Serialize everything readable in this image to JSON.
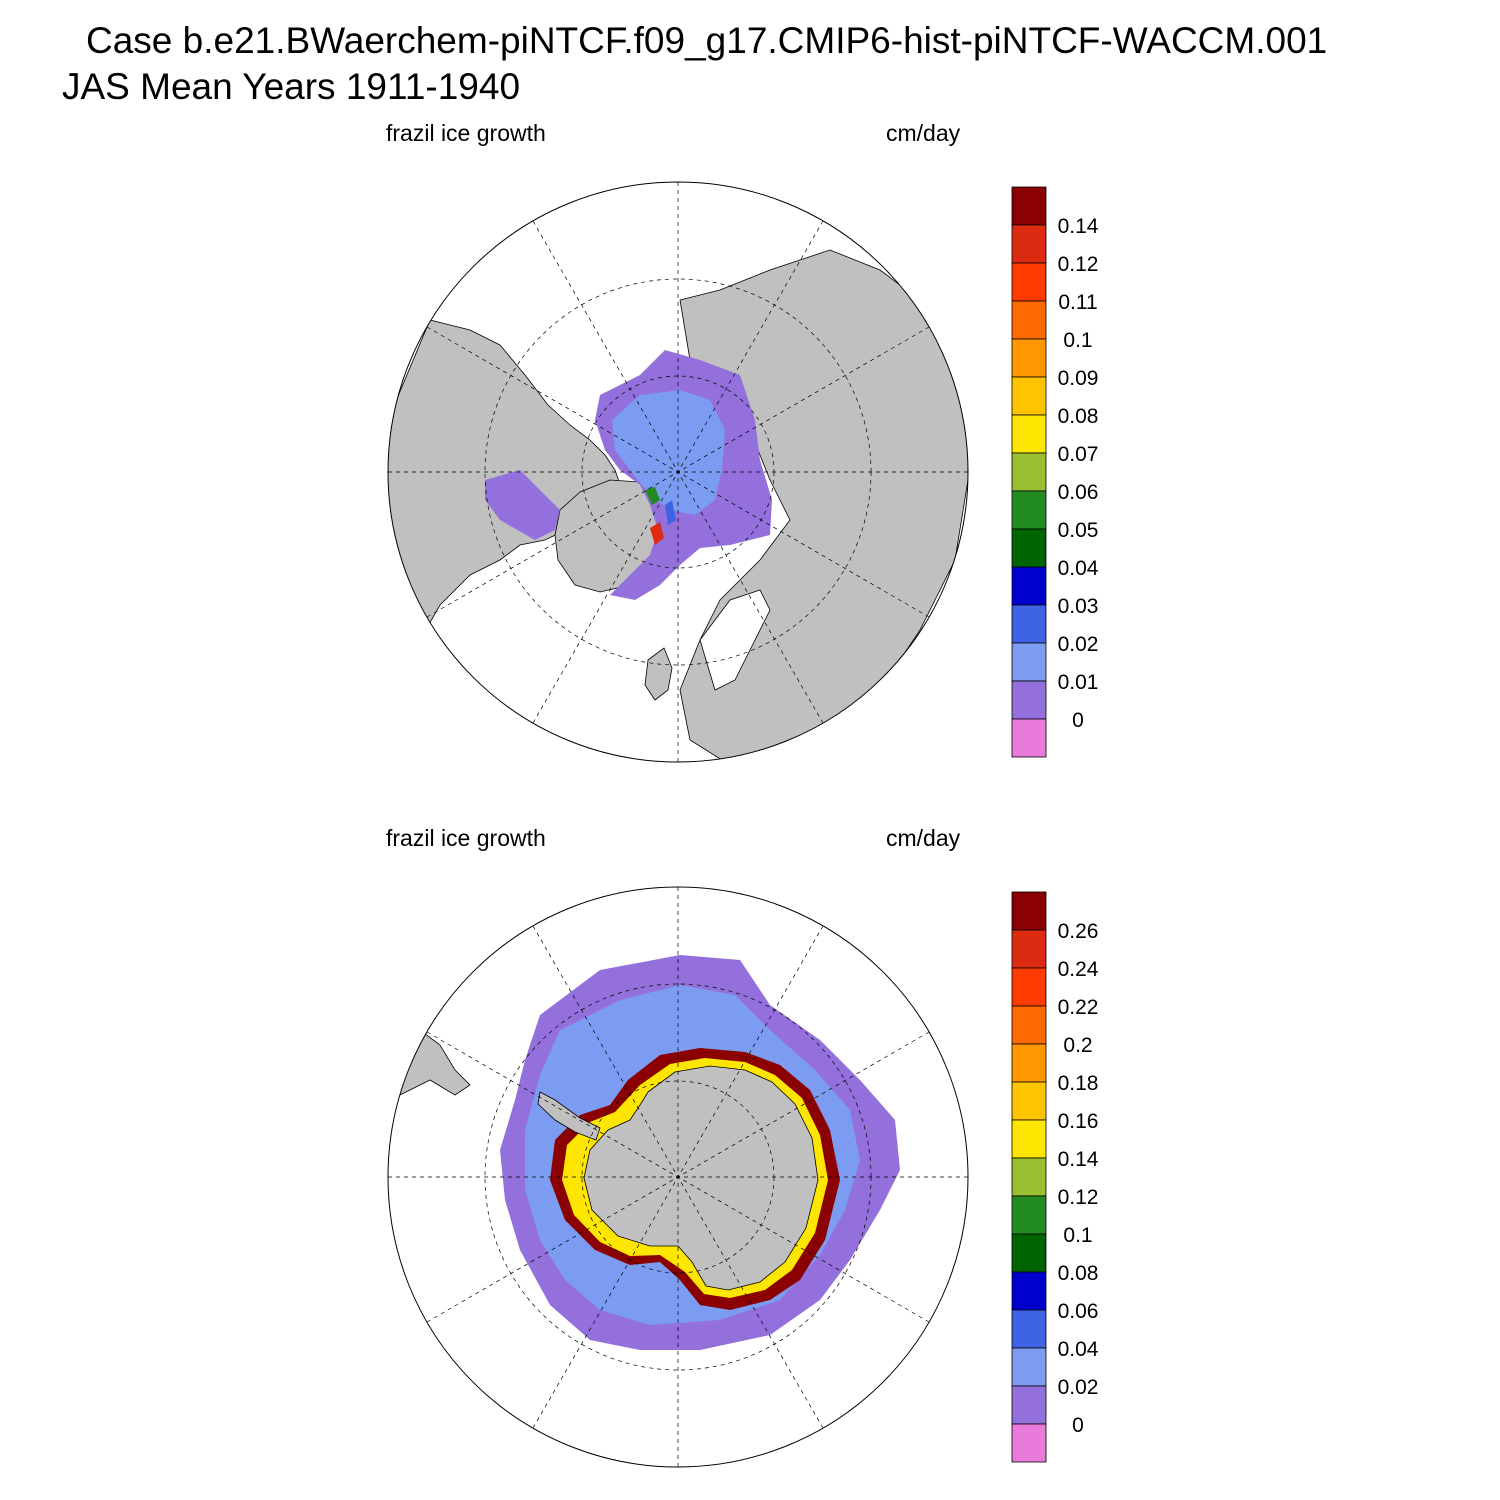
{
  "header": {
    "title_line1": "Case b.e21.BWaerchem-piNTCF.f09_g17.CMIP6-hist-piNTCF-WACCM.001",
    "title_line2": "JAS Mean   Years 1911-1940"
  },
  "panels": [
    {
      "id": "north",
      "left_label": "frazil ice growth",
      "right_label": "cm/day",
      "hemisphere": "north-polar-stereographic",
      "colorbar": {
        "levels": [
          "0.14",
          "0.12",
          "0.11",
          "0.1",
          "0.09",
          "0.08",
          "0.07",
          "0.06",
          "0.05",
          "0.04",
          "0.03",
          "0.02",
          "0.01",
          "0"
        ]
      }
    },
    {
      "id": "south",
      "left_label": "frazil ice growth",
      "right_label": "cm/day",
      "hemisphere": "south-polar-stereographic",
      "colorbar": {
        "levels": [
          "0.26",
          "0.24",
          "0.22",
          "0.2",
          "0.18",
          "0.16",
          "0.14",
          "0.12",
          "0.1",
          "0.08",
          "0.06",
          "0.04",
          "0.02",
          "0"
        ]
      }
    }
  ],
  "colors": {
    "palette_top_to_bottom": [
      "#8b0000",
      "#dc2b10",
      "#ff3b00",
      "#ff6a00",
      "#ff9800",
      "#ffc400",
      "#ffe600",
      "#9bbf32",
      "#228b22",
      "#006400",
      "#0000cd",
      "#3e64e5",
      "#7b9cf0",
      "#9370db",
      "#e87ad9"
    ],
    "land": "#c0c0c0",
    "ocean": "#ffffff"
  }
}
